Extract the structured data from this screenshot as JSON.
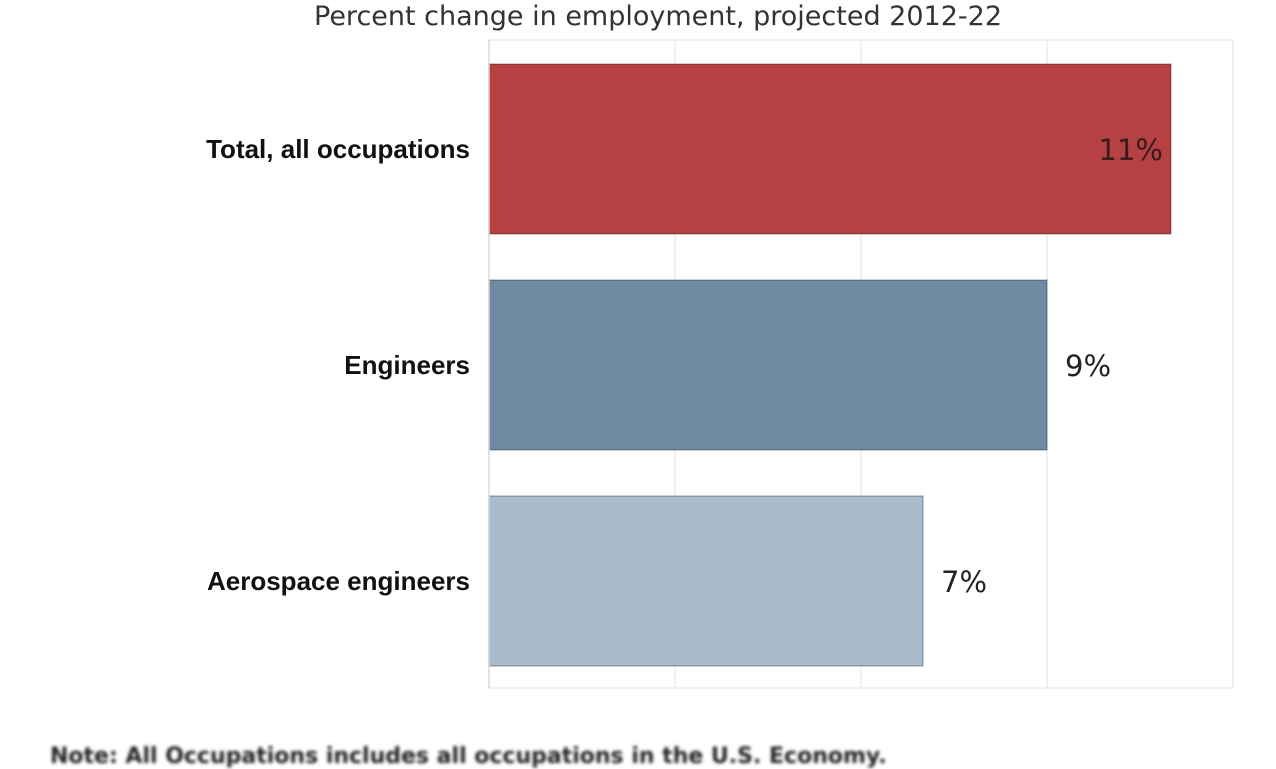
{
  "chart_data": {
    "type": "bar",
    "orientation": "horizontal",
    "title": "Percent change in employment, projected 2012-22",
    "categories": [
      "Total, all occupations",
      "Engineers",
      "Aerospace engineers"
    ],
    "values": [
      11,
      9,
      7
    ],
    "data_labels": [
      "11%",
      "9%",
      "7%"
    ],
    "colors": [
      "#b54142",
      "#6f8ba4",
      "#a9bccb"
    ],
    "xlim": [
      0,
      12
    ],
    "grid": true,
    "grid_step": 3,
    "note": "Note: All Occupations includes all occupations in the U.S. Economy."
  }
}
